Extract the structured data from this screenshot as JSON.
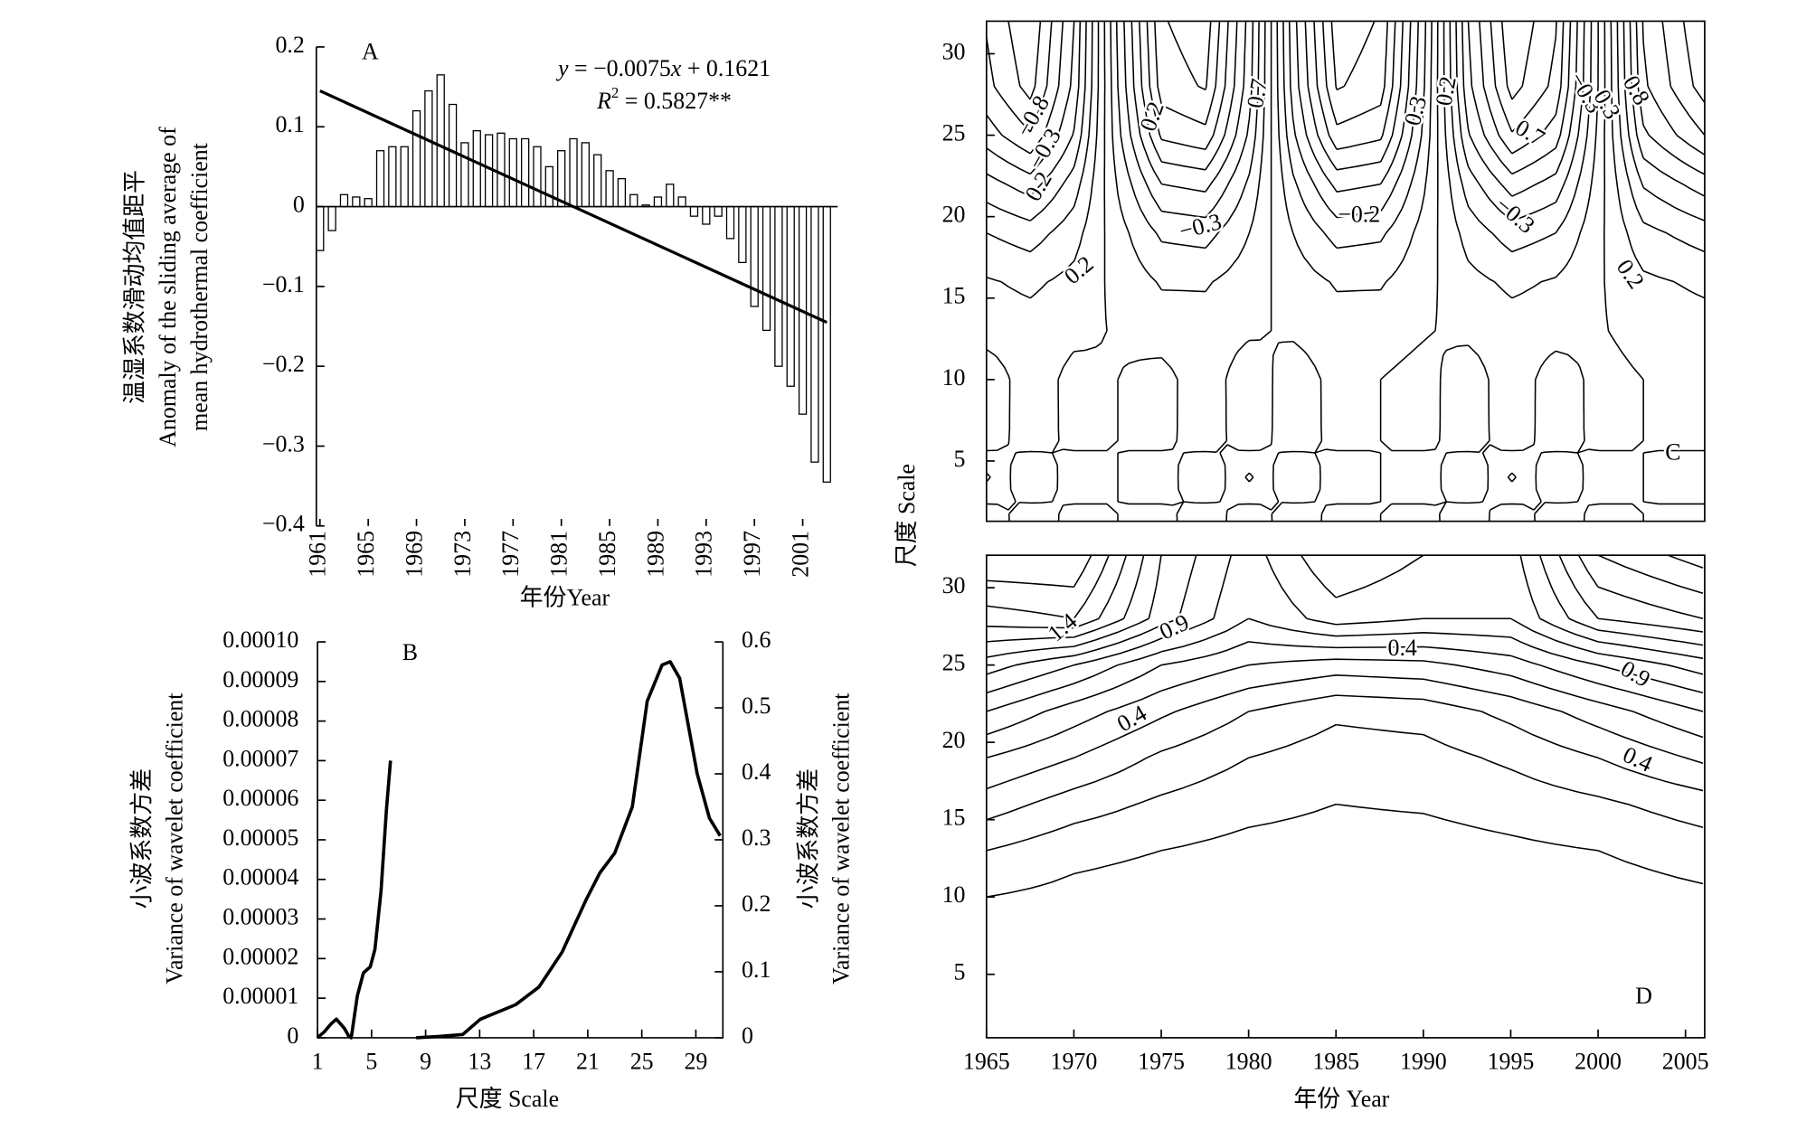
{
  "chart_data": [
    {
      "type": "bar",
      "panel_label": "A",
      "x": [
        1961,
        1962,
        1963,
        1964,
        1965,
        1966,
        1967,
        1968,
        1969,
        1970,
        1971,
        1972,
        1973,
        1974,
        1975,
        1976,
        1977,
        1978,
        1979,
        1980,
        1981,
        1982,
        1983,
        1984,
        1985,
        1986,
        1987,
        1988,
        1989,
        1990,
        1991,
        1992,
        1993,
        1994,
        1995,
        1996,
        1997,
        1998,
        1999,
        2000,
        2001,
        2002,
        2003
      ],
      "values": [
        -0.055,
        -0.03,
        0.015,
        0.012,
        0.01,
        0.07,
        0.075,
        0.075,
        0.12,
        0.145,
        0.165,
        0.128,
        0.08,
        0.095,
        0.09,
        0.092,
        0.085,
        0.085,
        0.075,
        0.05,
        0.07,
        0.085,
        0.08,
        0.065,
        0.045,
        0.035,
        0.015,
        0.002,
        0.012,
        0.028,
        0.012,
        -0.012,
        -0.022,
        -0.012,
        -0.04,
        -0.07,
        -0.125,
        -0.155,
        -0.2,
        -0.225,
        -0.26,
        -0.32,
        -0.345
      ],
      "color": "#ffffff",
      "edge_color": "#000000",
      "xlim": [
        1960.7,
        2003.9
      ],
      "xticks": [
        1961,
        1965,
        1969,
        1973,
        1977,
        1981,
        1985,
        1989,
        1993,
        1997,
        2001
      ],
      "ylim": [
        -0.4,
        0.2
      ],
      "yticks": [
        0.2,
        0.1,
        0,
        {
          "value": -0.1,
          "label": "−0.1"
        },
        {
          "value": -0.2,
          "label": "−0.2"
        },
        {
          "value": -0.3,
          "label": "−0.3"
        },
        {
          "value": -0.4,
          "label": "−0.4"
        }
      ],
      "ylabel": [
        "温湿系数滑动均值距平",
        "Anomaly of the sliding average of",
        "mean hydrothermal coefficient"
      ],
      "xlabel": "年份Year",
      "trend": {
        "x": [
          1961,
          2003
        ],
        "values": [
          0.145,
          -0.145
        ],
        "color": "#000000"
      },
      "equation": [
        "y",
        " = −0.0075",
        "x",
        " + 0.1621"
      ],
      "r_squared": [
        "R",
        "2",
        " = 0.5827**"
      ]
    },
    {
      "type": "line",
      "panel_label": "B",
      "xlim": [
        1,
        31
      ],
      "xticks": [
        1,
        5,
        9,
        13,
        17,
        21,
        25,
        29
      ],
      "ylim": [
        0,
        0.0001
      ],
      "yticks": [
        0,
        1e-05,
        2e-05,
        3e-05,
        4e-05,
        5e-05,
        6e-05,
        7e-05,
        8e-05,
        9e-05,
        {
          "value": 0.0001,
          "label": "0.00010"
        }
      ],
      "y2lim": [
        0,
        0.6
      ],
      "y2ticks": [
        0,
        0.1,
        0.2,
        0.3,
        0.4,
        0.5,
        0.6
      ],
      "ylabel": [
        "小波系数方差",
        "Variance of wavelet coefficient"
      ],
      "y2label": [
        "小波系数方差",
        "Variance of wavelet coefficient"
      ],
      "xlabel": "尺度 Scale",
      "series": [
        {
          "color": "#000000",
          "x": [
            1,
            1.5,
            2,
            2.4,
            3,
            3.3,
            3.5,
            3.95,
            4.4,
            4.9,
            5.25,
            5.7,
            6.1,
            6.4
          ],
          "values": [
            0,
            1.5e-06,
            3.5e-06,
            4.7e-06,
            2.3e-06,
            5e-07,
            0,
            1.06e-05,
            1.64e-05,
            1.79e-05,
            2.23e-05,
            3.7e-05,
            5.75e-05,
            7e-05
          ]
        },
        {
          "color": "#000000",
          "axis": "y2",
          "x": [
            8.3,
            10,
            11.75,
            13.05,
            15.66,
            17.4,
            19.1,
            20.9,
            21.9,
            23.0,
            24.3,
            25.4,
            26.5,
            27.1,
            27.8,
            29.1,
            30.0,
            30.8
          ],
          "values": [
            0,
            0.002,
            0.005,
            0.028,
            0.05,
            0.077,
            0.13,
            0.21,
            0.25,
            0.28,
            0.35,
            0.51,
            0.565,
            0.57,
            0.545,
            0.4,
            0.333,
            0.306
          ]
        }
      ]
    },
    {
      "type": "contour",
      "panel_label": "C",
      "xlim": [
        1965,
        2006
      ],
      "ylim": [
        1.3,
        32
      ],
      "yticks": [
        5,
        10,
        15,
        20,
        25,
        30
      ],
      "x": [
        1965,
        1967.5,
        1970,
        1972.5,
        1975,
        1977.5,
        1980,
        1982.5,
        1985,
        1987.5,
        1990,
        1992.5,
        1995,
        1997.5,
        2000,
        2002.5,
        2006
      ],
      "y": [
        1,
        4,
        7,
        10,
        13,
        16,
        19,
        22,
        25,
        28,
        32
      ],
      "z": [
        [
          -0.1,
          0.09,
          -0.05,
          0,
          0.05,
          -0.09,
          0.1,
          -0.09,
          0.05,
          0,
          -0.05,
          0.09,
          -0.1,
          0.09,
          -0.05,
          0,
          0.05
        ],
        [
          0.12,
          -0.1,
          0.06,
          0,
          -0.06,
          0.1,
          -0.12,
          0.1,
          -0.06,
          0,
          0.06,
          -0.1,
          0.12,
          -0.1,
          0.06,
          0,
          -0.06
        ],
        [
          -0.1,
          0.09,
          -0.05,
          0,
          0.05,
          -0.09,
          0.1,
          -0.09,
          0.05,
          0,
          -0.05,
          0.09,
          -0.1,
          0.09,
          -0.05,
          0,
          0.05
        ],
        [
          -0.08,
          0.07,
          -0.04,
          0,
          0.04,
          -0.07,
          0.08,
          -0.07,
          0.04,
          0,
          -0.04,
          0.07,
          -0.08,
          0.07,
          -0.04,
          0,
          0.04
        ],
        [
          0.05,
          0.06,
          0.03,
          -0.01,
          -0.05,
          -0.06,
          -0.02,
          0.02,
          0.06,
          0.05,
          0.01,
          -0.03,
          -0.06,
          -0.05,
          -0.01,
          0.04,
          0.06
        ],
        [
          0.09,
          0.12,
          0.07,
          -0.03,
          -0.11,
          -0.11,
          -0.05,
          0.05,
          0.11,
          0.11,
          0.03,
          -0.07,
          -0.12,
          -0.09,
          -0.01,
          0.08,
          0.12
        ],
        [
          0.2,
          0.25,
          0.14,
          -0.06,
          -0.22,
          -0.24,
          -0.1,
          0.1,
          0.24,
          0.22,
          0.06,
          -0.14,
          -0.25,
          -0.2,
          -0.02,
          0.17,
          0.25
        ],
        [
          0.36,
          0.45,
          0.25,
          -0.11,
          -0.4,
          -0.43,
          -0.18,
          0.18,
          0.43,
          0.4,
          0.11,
          -0.25,
          -0.45,
          -0.36,
          -0.04,
          0.31,
          0.45
        ],
        [
          0.55,
          0.69,
          0.39,
          -0.17,
          -0.62,
          -0.67,
          -0.28,
          0.28,
          0.67,
          0.62,
          0.17,
          -0.39,
          -0.69,
          -0.55,
          -0.06,
          0.48,
          0.7
        ],
        [
          0.67,
          0.84,
          0.47,
          -0.2,
          -0.75,
          -0.81,
          -0.34,
          0.34,
          0.81,
          0.75,
          0.2,
          -0.47,
          -0.84,
          -0.67,
          -0.08,
          0.58,
          0.85
        ],
        [
          0.71,
          0.89,
          0.5,
          -0.22,
          -0.79,
          -0.86,
          -0.36,
          0.36,
          0.86,
          0.79,
          0.22,
          -0.5,
          -0.89,
          -0.71,
          -0.08,
          0.61,
          0.9
        ]
      ],
      "levels": [
        -0.8,
        -0.7,
        -0.6,
        -0.5,
        -0.4,
        -0.3,
        -0.2,
        -0.1,
        0,
        0.1,
        0.2,
        0.3,
        0.4,
        0.5,
        0.6,
        0.7,
        0.8
      ],
      "contour_labels": [
        "−0.8",
        "−0.3",
        "0.2",
        "0.2",
        "0.7",
        "0.3",
        "0.2",
        "−0.3",
        "−0.2",
        "−0.3",
        "0.7",
        "−0.3",
        "0.3",
        "0.8",
        "0.2",
        "0.2"
      ]
    },
    {
      "type": "contour",
      "panel_label": "D",
      "xlim": [
        1965,
        2006.1
      ],
      "xticks": [
        1965,
        1970,
        1975,
        1980,
        1985,
        1990,
        1995,
        2000,
        2005
      ],
      "ylim": [
        0.9,
        32.1
      ],
      "yticks": [
        5,
        10,
        15,
        20,
        25,
        30
      ],
      "x": [
        1965,
        1970,
        1975,
        1980,
        1985,
        1990,
        1995,
        2000,
        2006
      ],
      "y": [
        1,
        4,
        7,
        10,
        13,
        16,
        19,
        22,
        25,
        28,
        32.1
      ],
      "z": [
        [
          0.02,
          0.01,
          0.01,
          0,
          0,
          0,
          0,
          0.02,
          0.03
        ],
        [
          0.03,
          0.02,
          0.01,
          0.01,
          0.01,
          0.01,
          0.01,
          0.02,
          0.03
        ],
        [
          0.06,
          0.04,
          0.03,
          0.02,
          0.02,
          0.02,
          0.02,
          0.03,
          0.05
        ],
        [
          0.1,
          0.07,
          0.05,
          0.04,
          0.03,
          0.03,
          0.04,
          0.05,
          0.08
        ],
        [
          0.2,
          0.13,
          0.1,
          0.07,
          0.06,
          0.06,
          0.08,
          0.1,
          0.15
        ],
        [
          0.35,
          0.25,
          0.18,
          0.13,
          0.1,
          0.11,
          0.14,
          0.18,
          0.25
        ],
        [
          0.5,
          0.4,
          0.28,
          0.2,
          0.15,
          0.16,
          0.22,
          0.3,
          0.42
        ],
        [
          0.7,
          0.55,
          0.42,
          0.3,
          0.22,
          0.24,
          0.33,
          0.45,
          0.6
        ],
        [
          0.95,
          0.8,
          0.6,
          0.5,
          0.45,
          0.47,
          0.55,
          0.7,
          0.85
        ],
        [
          1.25,
          1.3,
          0.95,
          0.7,
          0.85,
          0.8,
          0.8,
          1.1,
          1.2
        ],
        [
          1.5,
          1.5,
          1.0,
          0.75,
          1.0,
          0.9,
          0.85,
          1.3,
          1.45
        ]
      ],
      "levels": [
        0.1,
        0.2,
        0.3,
        0.4,
        0.5,
        0.6,
        0.7,
        0.8,
        0.9,
        1.0,
        1.1,
        1.2,
        1.3,
        1.4,
        1.5
      ],
      "contour_labels": [
        "1.4",
        "0.9",
        "0.4",
        "0.9",
        "0.4",
        "0.4"
      ],
      "xlabel": "年份 Year",
      "ylabel": "尺度 Scale"
    }
  ]
}
